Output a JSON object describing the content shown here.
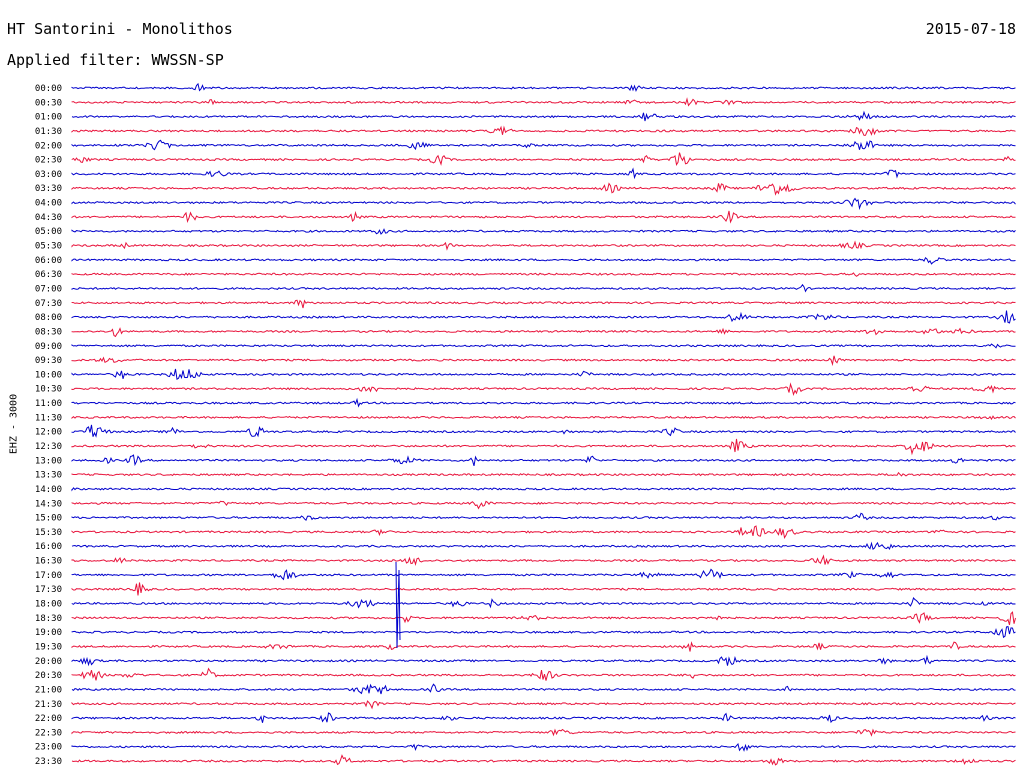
{
  "header": {
    "title": "HT Santorini - Monolithos",
    "date": "2015-07-18",
    "filter": "Applied filter: WWSSN-SP"
  },
  "chart_data": {
    "type": "line",
    "ylabel": "EHZ - 3000",
    "row_labels": [
      "00:00",
      "00:30",
      "01:00",
      "01:30",
      "02:00",
      "02:30",
      "03:00",
      "03:30",
      "04:00",
      "04:30",
      "05:00",
      "05:30",
      "06:00",
      "06:30",
      "07:00",
      "07:30",
      "08:00",
      "08:30",
      "09:00",
      "09:30",
      "10:00",
      "10:30",
      "11:00",
      "11:30",
      "12:00",
      "12:30",
      "13:00",
      "13:30",
      "14:00",
      "14:30",
      "15:00",
      "15:30",
      "16:00",
      "16:30",
      "17:00",
      "17:30",
      "18:00",
      "18:30",
      "19:00",
      "19:30",
      "20:00",
      "20:30",
      "21:00",
      "21:30",
      "22:00",
      "22:30",
      "23:00",
      "23:30"
    ],
    "trace_colors": [
      "#0000cc",
      "#e8143c"
    ],
    "grid": false
  }
}
